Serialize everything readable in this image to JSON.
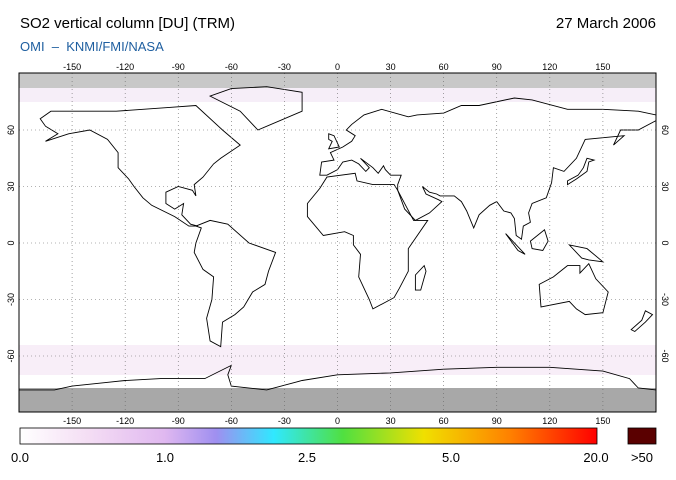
{
  "header": {
    "title": "SO2 vertical column [DU] (TRM)",
    "date": "27 March 2006",
    "credit": "OMI  –  KNMI/FMI/NASA"
  },
  "map": {
    "lon_ticks": [
      -150,
      -120,
      -90,
      -60,
      -30,
      0,
      30,
      60,
      90,
      120,
      150
    ],
    "lat_ticks": [
      60,
      30,
      0,
      -30,
      -60
    ]
  },
  "colorbar": {
    "labels": [
      "0.0",
      "1.0",
      "2.5",
      "5.0",
      "20.0",
      ">50"
    ]
  }
}
